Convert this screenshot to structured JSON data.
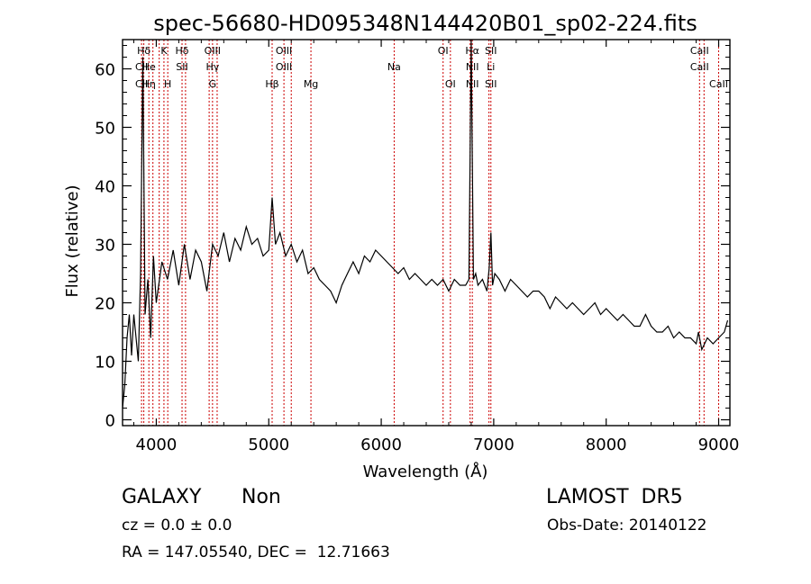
{
  "chart_data": {
    "type": "line",
    "title": "spec-56680-HD095348N144420B01_sp02-224.fits",
    "xlabel": "Wavelength (Å)",
    "ylabel": "Flux (relative)",
    "xlim": [
      3700,
      9100
    ],
    "ylim": [
      -1,
      65
    ],
    "x_ticks": [
      4000,
      5000,
      6000,
      7000,
      8000,
      9000
    ],
    "y_ticks": [
      0,
      10,
      20,
      30,
      40,
      50,
      60
    ],
    "grid": false,
    "line_color": "#000000",
    "marker_color": "#cc0000",
    "series": [
      {
        "x": [
          3700,
          3720,
          3740,
          3760,
          3780,
          3800,
          3820,
          3840,
          3860,
          3880,
          3900,
          3925,
          3950,
          3975,
          4000,
          4050,
          4100,
          4150,
          4200,
          4250,
          4300,
          4350,
          4400,
          4450,
          4500,
          4550,
          4600,
          4650,
          4700,
          4750,
          4800,
          4850,
          4900,
          4950,
          5000,
          5030,
          5060,
          5100,
          5150,
          5200,
          5250,
          5300,
          5350,
          5400,
          5450,
          5500,
          5550,
          5600,
          5650,
          5700,
          5750,
          5800,
          5850,
          5900,
          5950,
          6000,
          6050,
          6100,
          6150,
          6200,
          6250,
          6300,
          6350,
          6400,
          6450,
          6500,
          6550,
          6600,
          6650,
          6700,
          6750,
          6780,
          6800,
          6820,
          6840,
          6860,
          6900,
          6940,
          6960,
          6975,
          6990,
          7010,
          7050,
          7100,
          7150,
          7200,
          7250,
          7300,
          7350,
          7400,
          7450,
          7500,
          7550,
          7600,
          7650,
          7700,
          7750,
          7800,
          7850,
          7900,
          7950,
          8000,
          8050,
          8100,
          8150,
          8200,
          8250,
          8300,
          8350,
          8400,
          8450,
          8500,
          8550,
          8600,
          8650,
          8700,
          8750,
          8800,
          8820,
          8850,
          8900,
          8950,
          9000,
          9050,
          9080
        ],
        "y": [
          2,
          6,
          14,
          18,
          11,
          18,
          14,
          10,
          25,
          62,
          18,
          24,
          14,
          28,
          20,
          27,
          24,
          29,
          23,
          30,
          24,
          29,
          27,
          22,
          30,
          28,
          32,
          27,
          31,
          29,
          33,
          30,
          31,
          28,
          29,
          38,
          30,
          32,
          28,
          30,
          27,
          29,
          25,
          26,
          24,
          23,
          22,
          20,
          23,
          25,
          27,
          25,
          28,
          27,
          29,
          28,
          27,
          26,
          25,
          26,
          24,
          25,
          24,
          23,
          24,
          23,
          24,
          22,
          24,
          23,
          23,
          24,
          65,
          24,
          25,
          23,
          24,
          22,
          26,
          32,
          23,
          25,
          24,
          22,
          24,
          23,
          22,
          21,
          22,
          22,
          21,
          19,
          21,
          20,
          19,
          20,
          19,
          18,
          19,
          20,
          18,
          19,
          18,
          17,
          18,
          17,
          16,
          16,
          18,
          16,
          15,
          15,
          16,
          14,
          15,
          14,
          14,
          13,
          15,
          12,
          14,
          13,
          14,
          15,
          17
        ]
      }
    ],
    "line_markers": [
      {
        "x": 3869,
        "labels": [
          "",
          "CII",
          "CII"
        ]
      },
      {
        "x": 3889,
        "labels": [
          "Hδ",
          "",
          ""
        ]
      },
      {
        "x": 3934,
        "labels": [
          "",
          "He",
          "Hη"
        ]
      },
      {
        "x": 3970,
        "labels": [
          "",
          "",
          ""
        ]
      },
      {
        "x": 4026,
        "labels": [
          "",
          "",
          ""
        ]
      },
      {
        "x": 4068,
        "labels": [
          "K",
          "",
          ""
        ]
      },
      {
        "x": 4102,
        "labels": [
          "",
          "",
          "H"
        ]
      },
      {
        "x": 4229,
        "labels": [
          "Hδ",
          "SII",
          ""
        ]
      },
      {
        "x": 4260,
        "labels": [
          "",
          "",
          ""
        ]
      },
      {
        "x": 4470,
        "labels": [
          "",
          "",
          ""
        ]
      },
      {
        "x": 4500,
        "labels": [
          "OIII",
          "Hγ",
          "G"
        ]
      },
      {
        "x": 4541,
        "labels": [
          "",
          "",
          ""
        ]
      },
      {
        "x": 5030,
        "labels": [
          "",
          "",
          "Hβ"
        ]
      },
      {
        "x": 5135,
        "labels": [
          "OIII",
          "OIII",
          ""
        ]
      },
      {
        "x": 5200,
        "labels": [
          "",
          "",
          ""
        ]
      },
      {
        "x": 5375,
        "labels": [
          "",
          "",
          "Mg"
        ]
      },
      {
        "x": 6115,
        "labels": [
          "",
          "Na",
          ""
        ]
      },
      {
        "x": 6550,
        "labels": [
          "OI",
          "",
          ""
        ]
      },
      {
        "x": 6615,
        "labels": [
          "",
          "",
          "OI"
        ]
      },
      {
        "x": 6790,
        "labels": [
          "",
          "",
          ""
        ]
      },
      {
        "x": 6810,
        "labels": [
          "Hα",
          "NII",
          "NII"
        ]
      },
      {
        "x": 6958,
        "labels": [
          "",
          "",
          ""
        ]
      },
      {
        "x": 6975,
        "labels": [
          "SII",
          "Li",
          "SII"
        ]
      },
      {
        "x": 8830,
        "labels": [
          "CaII",
          "CaII",
          ""
        ]
      },
      {
        "x": 8870,
        "labels": [
          "",
          "",
          ""
        ]
      },
      {
        "x": 9000,
        "labels": [
          "",
          "",
          "CaII"
        ]
      }
    ]
  },
  "info": {
    "object_class": "GALAXY",
    "subclass": "Non",
    "survey": "LAMOST  DR5",
    "redshift_line": "cz = 0.0 ± 0.0",
    "obs_date_line": "Obs-Date: 20140122",
    "coords_line": "RA = 147.05540, DEC =  12.71663"
  }
}
